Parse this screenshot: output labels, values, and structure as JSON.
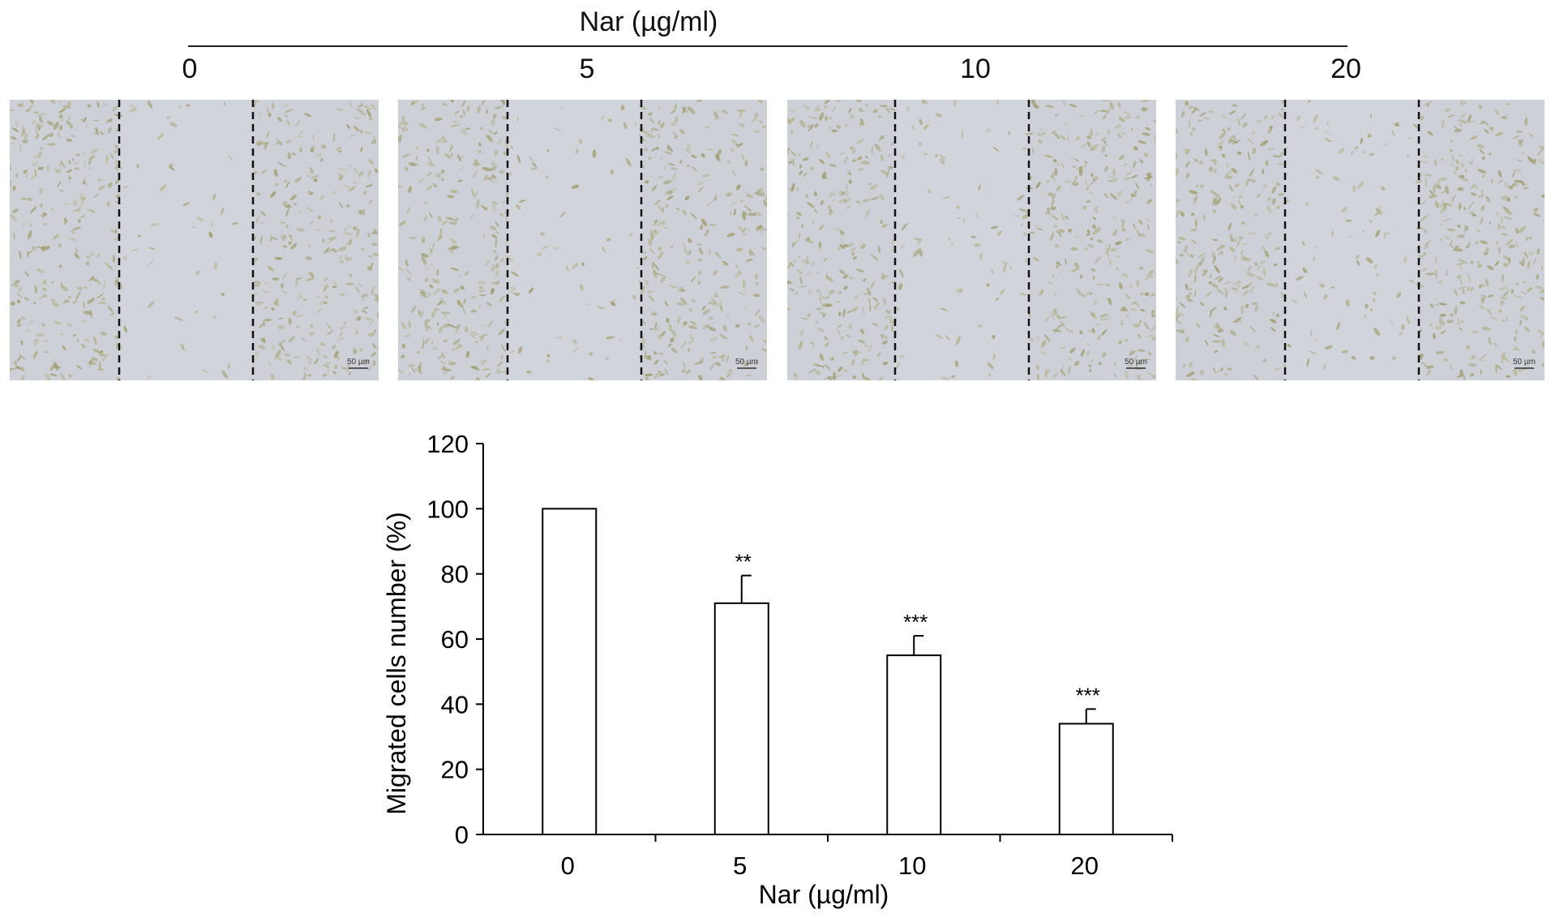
{
  "figure": {
    "header_title": "Nar (µg/ml)",
    "concentrations": [
      "0",
      "5",
      "10",
      "20"
    ],
    "scale_bar_label": "50 µm",
    "panel_colors": {
      "background": "#cdd1d7",
      "cells": "#9e9a6a",
      "gap": "#d6d9de",
      "line": "#111111"
    }
  },
  "chart_data": {
    "type": "bar",
    "categories": [
      "0",
      "5",
      "10",
      "20"
    ],
    "values": [
      100,
      71,
      55,
      34
    ],
    "errors": [
      0,
      8.5,
      6,
      4.5
    ],
    "significance": [
      "",
      "**",
      "***",
      "***"
    ],
    "xlabel": "Nar (µg/ml)",
    "ylabel": "Migrated cells number (%)",
    "ylim": [
      0,
      120
    ],
    "yticks": [
      "0",
      "20",
      "40",
      "60",
      "80",
      "100",
      "120"
    ],
    "grid": false,
    "bar_fill": "#ffffff",
    "bar_stroke": "#000000"
  }
}
